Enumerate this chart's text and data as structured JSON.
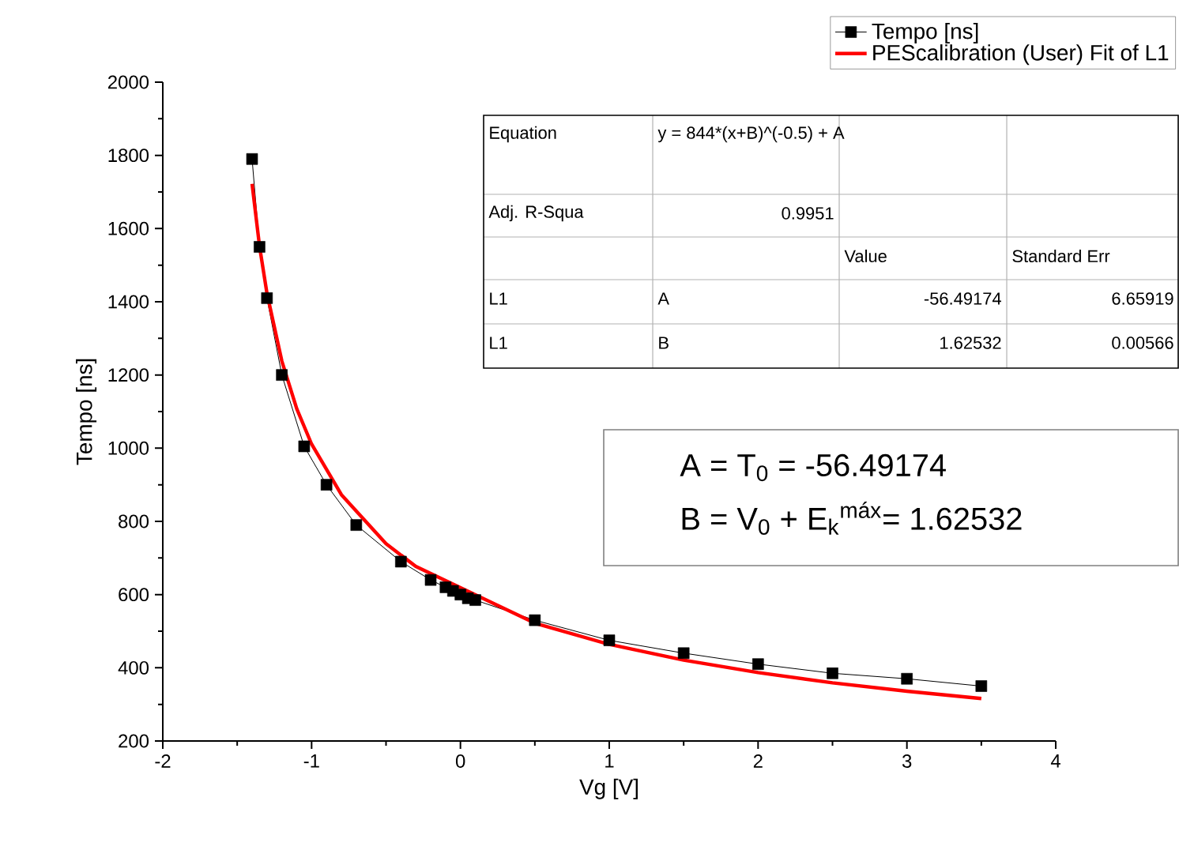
{
  "chart_data": {
    "type": "line",
    "xlabel": "Vg [V]",
    "ylabel": "Tempo [ns]",
    "xlim": [
      -2,
      4
    ],
    "xticks": [
      -2,
      -1,
      0,
      1,
      2,
      3,
      4
    ],
    "ylim": [
      200,
      2000
    ],
    "yticks": [
      200,
      400,
      600,
      800,
      1000,
      1200,
      1400,
      1600,
      1800,
      2000
    ],
    "legend": "top right",
    "series": [
      {
        "name": "Tempo [ns]",
        "color": "#000000",
        "marker": "square",
        "line_style": "solid",
        "x": [
          -1.4,
          -1.35,
          -1.3,
          -1.2,
          -1.05,
          -0.9,
          -0.7,
          -0.4,
          -0.2,
          -0.1,
          -0.05,
          0,
          0.05,
          0.1,
          0.5,
          1,
          1.5,
          2,
          2.5,
          3,
          3.5
        ],
        "values": [
          1790,
          1550,
          1410,
          1200,
          1005,
          900,
          790,
          690,
          640,
          620,
          610,
          600,
          590,
          585,
          530,
          475,
          440,
          410,
          385,
          370,
          350
        ]
      },
      {
        "name": "PEScalibration (User) Fit of L1",
        "color": "#ff0000",
        "marker": "none",
        "line_style": "solid",
        "x": [
          -1.4,
          -1.35,
          -1.3,
          -1.2,
          -1.1,
          -1.0,
          -0.8,
          -0.5,
          -0.3,
          0.5,
          1,
          1.5,
          2,
          2.5,
          3,
          3.5
        ],
        "values": [
          1722,
          1552,
          1423,
          1238,
          1108,
          1011,
          873,
          739,
          677,
          522,
          464,
          421,
          387,
          359,
          336,
          316
        ]
      }
    ],
    "annotations": [
      "Equation",
      "y = 844*(x+B)^(-0.5) + A",
      "Adj. R-Squa",
      "0.9951",
      "Value",
      "Standard Err",
      "L1",
      "A",
      "-56.49174",
      "6.65919",
      "L1",
      "B",
      "1.62532",
      "0.00566",
      "A = T$_{0}$ = -56.49174",
      "B = V$_{0}$ + E$_{k}$$^{máx}$= 1.62532"
    ]
  }
}
